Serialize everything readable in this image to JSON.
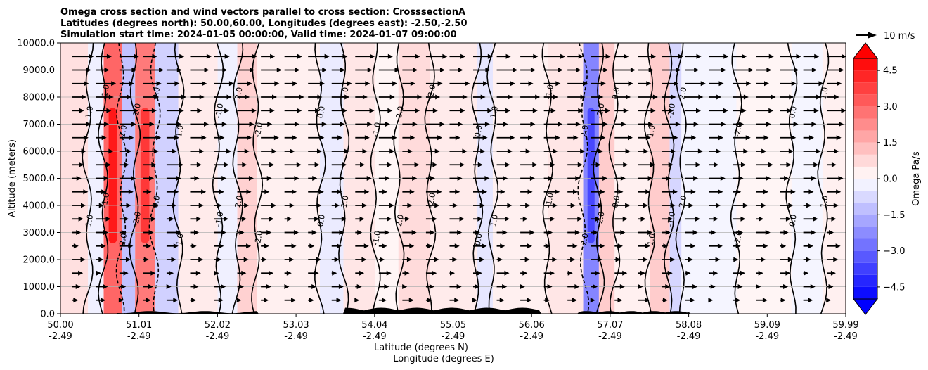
{
  "chart_data": {
    "type": "heatmap",
    "title_lines": [
      "Omega cross section and wind vectors parallel to cross section: CrosssectionA",
      "Latitudes (degrees north): 50.00,60.00, Longitudes (degrees east): -2.50,-2.50",
      "Simulation start time: 2024-01-05 00:00:00, Valid time: 2024-01-07 09:00:00"
    ],
    "ylabel": "Altitude (meters)",
    "xlabel_lines": [
      "Latitude (degrees N)",
      "Longitude (degrees E)"
    ],
    "ylim": [
      0,
      10000
    ],
    "y_ticks": [
      "0.0",
      "1000.0",
      "2000.0",
      "3000.0",
      "4000.0",
      "5000.0",
      "6000.0",
      "7000.0",
      "8000.0",
      "9000.0",
      "10000.0"
    ],
    "x_ticks": [
      {
        "lat": "50.00",
        "lon": "-2.49"
      },
      {
        "lat": "51.01",
        "lon": "-2.49"
      },
      {
        "lat": "52.02",
        "lon": "-2.49"
      },
      {
        "lat": "53.03",
        "lon": "-2.49"
      },
      {
        "lat": "54.04",
        "lon": "-2.49"
      },
      {
        "lat": "55.05",
        "lon": "-2.49"
      },
      {
        "lat": "56.06",
        "lon": "-2.49"
      },
      {
        "lat": "57.07",
        "lon": "-2.49"
      },
      {
        "lat": "58.08",
        "lon": "-2.49"
      },
      {
        "lat": "59.09",
        "lon": "-2.49"
      },
      {
        "lat": "59.99",
        "lon": "-2.49"
      }
    ],
    "colorbar": {
      "label": "Omega Pa/s",
      "range": [
        -5.0,
        5.0
      ],
      "ticks": [
        "4.5",
        "3.0",
        "1.5",
        "0.0",
        "−1.5",
        "−3.0",
        "−4.5"
      ],
      "tick_values": [
        4.5,
        3.0,
        1.5,
        0.0,
        -1.5,
        -3.0,
        -4.5
      ]
    },
    "vector_key": {
      "label": "10 m/s",
      "speed": 10
    },
    "contour_labels": [
      "0.0",
      "1.0",
      "-1.0",
      "2.0",
      "-2.0"
    ],
    "bands": [
      {
        "x0": 50.0,
        "x1": 50.35,
        "omega": 0.6
      },
      {
        "x0": 50.35,
        "x1": 50.55,
        "omega": -0.3
      },
      {
        "x0": 50.55,
        "x1": 50.78,
        "omega": 3.0
      },
      {
        "x0": 50.78,
        "x1": 50.95,
        "omega": -1.2
      },
      {
        "x0": 50.95,
        "x1": 51.2,
        "omega": 2.6
      },
      {
        "x0": 51.2,
        "x1": 51.5,
        "omega": -0.9
      },
      {
        "x0": 51.5,
        "x1": 52.0,
        "omega": 0.4
      },
      {
        "x0": 52.0,
        "x1": 52.25,
        "omega": -0.3
      },
      {
        "x0": 52.25,
        "x1": 52.5,
        "omega": 0.9
      },
      {
        "x0": 52.5,
        "x1": 53.3,
        "omega": 0.3
      },
      {
        "x0": 53.3,
        "x1": 53.6,
        "omega": -0.4
      },
      {
        "x0": 53.6,
        "x1": 54.0,
        "omega": 0.5
      },
      {
        "x0": 54.0,
        "x1": 54.3,
        "omega": 0.2
      },
      {
        "x0": 54.3,
        "x1": 54.7,
        "omega": 0.7
      },
      {
        "x0": 54.7,
        "x1": 55.3,
        "omega": 0.4
      },
      {
        "x0": 55.3,
        "x1": 55.5,
        "omega": -0.5
      },
      {
        "x0": 55.5,
        "x1": 56.2,
        "omega": 0.3
      },
      {
        "x0": 56.2,
        "x1": 56.65,
        "omega": 0.5
      },
      {
        "x0": 56.65,
        "x1": 56.85,
        "omega": -2.4
      },
      {
        "x0": 56.85,
        "x1": 57.05,
        "omega": 1.0
      },
      {
        "x0": 57.05,
        "x1": 57.5,
        "omega": 0.3
      },
      {
        "x0": 57.5,
        "x1": 57.75,
        "omega": 1.0
      },
      {
        "x0": 57.75,
        "x1": 57.9,
        "omega": -0.8
      },
      {
        "x0": 57.9,
        "x1": 58.6,
        "omega": -0.2
      },
      {
        "x0": 58.6,
        "x1": 59.3,
        "omega": 0.2
      },
      {
        "x0": 59.3,
        "x1": 59.7,
        "omega": -0.2
      },
      {
        "x0": 59.7,
        "x1": 59.99,
        "omega": 0.3
      }
    ]
  }
}
